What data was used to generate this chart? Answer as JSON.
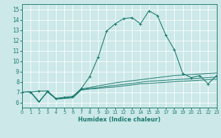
{
  "xlabel": "Humidex (Indice chaleur)",
  "xlim": [
    0,
    23
  ],
  "ylim": [
    5.5,
    15.5
  ],
  "xticks": [
    0,
    1,
    2,
    3,
    4,
    5,
    6,
    7,
    8,
    9,
    10,
    11,
    12,
    13,
    14,
    15,
    16,
    17,
    18,
    19,
    20,
    21,
    22,
    23
  ],
  "yticks": [
    6,
    7,
    8,
    9,
    10,
    11,
    12,
    13,
    14,
    15
  ],
  "bg_color": "#cce8e8",
  "grid_color": "#b0d0d0",
  "line_color": "#1a7a6e",
  "series1": [
    [
      0,
      7.0
    ],
    [
      1,
      7.0
    ],
    [
      2,
      7.1
    ],
    [
      3,
      7.1
    ],
    [
      4,
      6.4
    ],
    [
      5,
      6.5
    ],
    [
      6,
      6.6
    ],
    [
      7,
      7.35
    ],
    [
      8,
      8.5
    ],
    [
      9,
      10.4
    ],
    [
      10,
      12.9
    ],
    [
      11,
      13.6
    ],
    [
      12,
      14.1
    ],
    [
      13,
      14.2
    ],
    [
      14,
      13.6
    ],
    [
      15,
      14.85
    ],
    [
      16,
      14.4
    ],
    [
      17,
      12.5
    ],
    [
      18,
      11.1
    ],
    [
      19,
      8.8
    ],
    [
      20,
      8.4
    ],
    [
      21,
      8.6
    ],
    [
      22,
      7.8
    ],
    [
      23,
      8.6
    ]
  ],
  "series2": [
    [
      0,
      7.0
    ],
    [
      1,
      7.0
    ],
    [
      2,
      6.0
    ],
    [
      3,
      7.1
    ],
    [
      4,
      6.35
    ],
    [
      5,
      6.4
    ],
    [
      6,
      6.5
    ],
    [
      7,
      7.3
    ],
    [
      8,
      7.45
    ],
    [
      9,
      7.6
    ],
    [
      10,
      7.75
    ],
    [
      11,
      7.9
    ],
    [
      12,
      8.0
    ],
    [
      13,
      8.1
    ],
    [
      14,
      8.2
    ],
    [
      15,
      8.3
    ],
    [
      16,
      8.4
    ],
    [
      17,
      8.5
    ],
    [
      18,
      8.6
    ],
    [
      19,
      8.65
    ],
    [
      20,
      8.7
    ],
    [
      21,
      8.75
    ],
    [
      22,
      8.8
    ],
    [
      23,
      8.85
    ]
  ],
  "series3": [
    [
      0,
      7.0
    ],
    [
      1,
      7.05
    ],
    [
      2,
      6.05
    ],
    [
      3,
      7.05
    ],
    [
      4,
      6.35
    ],
    [
      5,
      6.4
    ],
    [
      6,
      6.5
    ],
    [
      7,
      7.25
    ],
    [
      8,
      7.35
    ],
    [
      9,
      7.45
    ],
    [
      10,
      7.55
    ],
    [
      11,
      7.65
    ],
    [
      12,
      7.75
    ],
    [
      13,
      7.85
    ],
    [
      14,
      7.95
    ],
    [
      15,
      8.05
    ],
    [
      16,
      8.1
    ],
    [
      17,
      8.15
    ],
    [
      18,
      8.2
    ],
    [
      19,
      8.25
    ],
    [
      20,
      8.3
    ],
    [
      21,
      8.35
    ],
    [
      22,
      8.4
    ],
    [
      23,
      8.45
    ]
  ],
  "series4": [
    [
      0,
      7.0
    ],
    [
      1,
      7.0
    ],
    [
      2,
      6.1
    ],
    [
      3,
      7.0
    ],
    [
      4,
      6.35
    ],
    [
      5,
      6.4
    ],
    [
      6,
      6.45
    ],
    [
      7,
      7.2
    ],
    [
      8,
      7.3
    ],
    [
      9,
      7.35
    ],
    [
      10,
      7.45
    ],
    [
      11,
      7.5
    ],
    [
      12,
      7.6
    ],
    [
      13,
      7.7
    ],
    [
      14,
      7.8
    ],
    [
      15,
      7.85
    ],
    [
      16,
      7.9
    ],
    [
      17,
      7.95
    ],
    [
      18,
      8.0
    ],
    [
      19,
      8.05
    ],
    [
      20,
      8.1
    ],
    [
      21,
      8.15
    ],
    [
      22,
      8.2
    ],
    [
      23,
      8.25
    ]
  ]
}
